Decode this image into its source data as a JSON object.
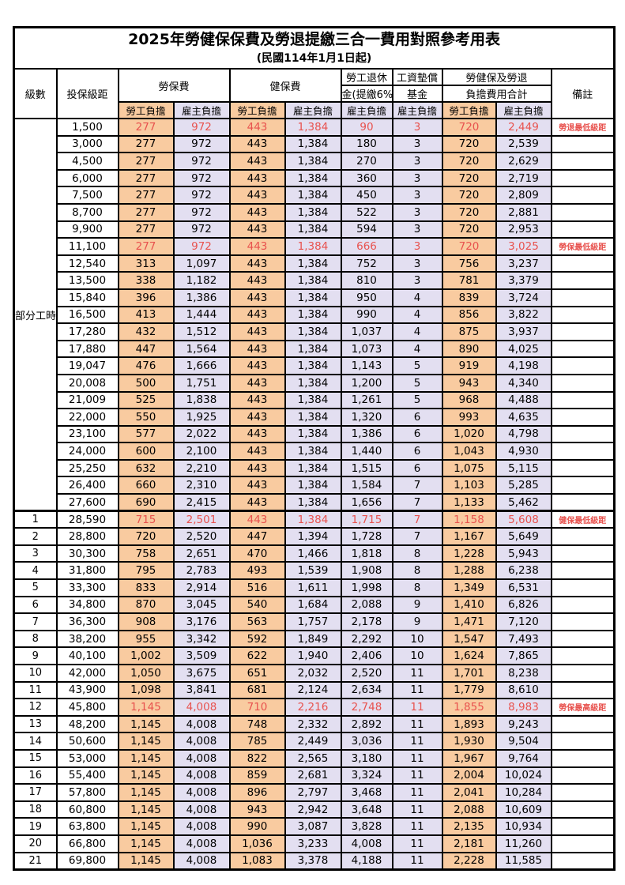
{
  "title": "2025年勞健保保費及勞退提繳三合一費用對照參考用表",
  "subtitle": "(民國114年1月1日起)",
  "header": {
    "level": "級數",
    "bracket": "投保級距",
    "labor_insurance": "勞保費",
    "health_insurance": "健保費",
    "pension_line1": "勞工退休",
    "pension_line2": "金(提繳6%)",
    "wage_fund_line1": "工資墊償",
    "wage_fund_line2": "基金",
    "total_line1": "勞健保及勞退",
    "total_line2": "負擔費用合計",
    "employee_share": "勞工負擔",
    "employer_share": "雇主負擔",
    "remark": "備註"
  },
  "part_time_label": "部分工時",
  "part_time_rows": 23,
  "colors": {
    "employee_bg": "#F9CBA0",
    "employer_bg": "#E3DFF1",
    "highlight_text": "#E8524E",
    "border": "#000000"
  },
  "column_pattern": [
    "emp",
    "er",
    "emp",
    "er",
    "er",
    "er",
    "emp",
    "er"
  ],
  "rows": [
    {
      "level": "",
      "bracket": "1,500",
      "values": [
        "277",
        "972",
        "443",
        "1,384",
        "90",
        "3",
        "720",
        "2,449"
      ],
      "note": "勞退最低級距",
      "highlight": true
    },
    {
      "level": "",
      "bracket": "3,000",
      "values": [
        "277",
        "972",
        "443",
        "1,384",
        "180",
        "3",
        "720",
        "2,539"
      ],
      "note": "",
      "highlight": false
    },
    {
      "level": "",
      "bracket": "4,500",
      "values": [
        "277",
        "972",
        "443",
        "1,384",
        "270",
        "3",
        "720",
        "2,629"
      ],
      "note": "",
      "highlight": false
    },
    {
      "level": "",
      "bracket": "6,000",
      "values": [
        "277",
        "972",
        "443",
        "1,384",
        "360",
        "3",
        "720",
        "2,719"
      ],
      "note": "",
      "highlight": false
    },
    {
      "level": "",
      "bracket": "7,500",
      "values": [
        "277",
        "972",
        "443",
        "1,384",
        "450",
        "3",
        "720",
        "2,809"
      ],
      "note": "",
      "highlight": false
    },
    {
      "level": "",
      "bracket": "8,700",
      "values": [
        "277",
        "972",
        "443",
        "1,384",
        "522",
        "3",
        "720",
        "2,881"
      ],
      "note": "",
      "highlight": false
    },
    {
      "level": "",
      "bracket": "9,900",
      "values": [
        "277",
        "972",
        "443",
        "1,384",
        "594",
        "3",
        "720",
        "2,953"
      ],
      "note": "",
      "highlight": false
    },
    {
      "level": "",
      "bracket": "11,100",
      "values": [
        "277",
        "972",
        "443",
        "1,384",
        "666",
        "3",
        "720",
        "3,025"
      ],
      "note": "勞保最低級距",
      "highlight": true
    },
    {
      "level": "",
      "bracket": "12,540",
      "values": [
        "313",
        "1,097",
        "443",
        "1,384",
        "752",
        "3",
        "756",
        "3,237"
      ],
      "note": "",
      "highlight": false
    },
    {
      "level": "",
      "bracket": "13,500",
      "values": [
        "338",
        "1,182",
        "443",
        "1,384",
        "810",
        "3",
        "781",
        "3,379"
      ],
      "note": "",
      "highlight": false
    },
    {
      "level": "",
      "bracket": "15,840",
      "values": [
        "396",
        "1,386",
        "443",
        "1,384",
        "950",
        "4",
        "839",
        "3,724"
      ],
      "note": "",
      "highlight": false
    },
    {
      "level": "",
      "bracket": "16,500",
      "values": [
        "413",
        "1,444",
        "443",
        "1,384",
        "990",
        "4",
        "856",
        "3,822"
      ],
      "note": "",
      "highlight": false
    },
    {
      "level": "",
      "bracket": "17,280",
      "values": [
        "432",
        "1,512",
        "443",
        "1,384",
        "1,037",
        "4",
        "875",
        "3,937"
      ],
      "note": "",
      "highlight": false
    },
    {
      "level": "",
      "bracket": "17,880",
      "values": [
        "447",
        "1,564",
        "443",
        "1,384",
        "1,073",
        "4",
        "890",
        "4,025"
      ],
      "note": "",
      "highlight": false
    },
    {
      "level": "",
      "bracket": "19,047",
      "values": [
        "476",
        "1,666",
        "443",
        "1,384",
        "1,143",
        "5",
        "919",
        "4,198"
      ],
      "note": "",
      "highlight": false
    },
    {
      "level": "",
      "bracket": "20,008",
      "values": [
        "500",
        "1,751",
        "443",
        "1,384",
        "1,200",
        "5",
        "943",
        "4,340"
      ],
      "note": "",
      "highlight": false
    },
    {
      "level": "",
      "bracket": "21,009",
      "values": [
        "525",
        "1,838",
        "443",
        "1,384",
        "1,261",
        "5",
        "968",
        "4,488"
      ],
      "note": "",
      "highlight": false
    },
    {
      "level": "",
      "bracket": "22,000",
      "values": [
        "550",
        "1,925",
        "443",
        "1,384",
        "1,320",
        "6",
        "993",
        "4,635"
      ],
      "note": "",
      "highlight": false
    },
    {
      "level": "",
      "bracket": "23,100",
      "values": [
        "577",
        "2,022",
        "443",
        "1,384",
        "1,386",
        "6",
        "1,020",
        "4,798"
      ],
      "note": "",
      "highlight": false
    },
    {
      "level": "",
      "bracket": "24,000",
      "values": [
        "600",
        "2,100",
        "443",
        "1,384",
        "1,440",
        "6",
        "1,043",
        "4,930"
      ],
      "note": "",
      "highlight": false
    },
    {
      "level": "",
      "bracket": "25,250",
      "values": [
        "632",
        "2,210",
        "443",
        "1,384",
        "1,515",
        "6",
        "1,075",
        "5,115"
      ],
      "note": "",
      "highlight": false
    },
    {
      "level": "",
      "bracket": "26,400",
      "values": [
        "660",
        "2,310",
        "443",
        "1,384",
        "1,584",
        "7",
        "1,103",
        "5,285"
      ],
      "note": "",
      "highlight": false
    },
    {
      "level": "",
      "bracket": "27,600",
      "values": [
        "690",
        "2,415",
        "443",
        "1,384",
        "1,656",
        "7",
        "1,133",
        "5,462"
      ],
      "note": "",
      "highlight": false
    },
    {
      "level": "1",
      "bracket": "28,590",
      "values": [
        "715",
        "2,501",
        "443",
        "1,384",
        "1,715",
        "7",
        "1,158",
        "5,608"
      ],
      "note": "健保最低級距",
      "highlight": true,
      "section_start": true
    },
    {
      "level": "2",
      "bracket": "28,800",
      "values": [
        "720",
        "2,520",
        "447",
        "1,394",
        "1,728",
        "7",
        "1,167",
        "5,649"
      ],
      "note": "",
      "highlight": false
    },
    {
      "level": "3",
      "bracket": "30,300",
      "values": [
        "758",
        "2,651",
        "470",
        "1,466",
        "1,818",
        "8",
        "1,228",
        "5,943"
      ],
      "note": "",
      "highlight": false
    },
    {
      "level": "4",
      "bracket": "31,800",
      "values": [
        "795",
        "2,783",
        "493",
        "1,539",
        "1,908",
        "8",
        "1,288",
        "6,238"
      ],
      "note": "",
      "highlight": false
    },
    {
      "level": "5",
      "bracket": "33,300",
      "values": [
        "833",
        "2,914",
        "516",
        "1,611",
        "1,998",
        "8",
        "1,349",
        "6,531"
      ],
      "note": "",
      "highlight": false
    },
    {
      "level": "6",
      "bracket": "34,800",
      "values": [
        "870",
        "3,045",
        "540",
        "1,684",
        "2,088",
        "9",
        "1,410",
        "6,826"
      ],
      "note": "",
      "highlight": false
    },
    {
      "level": "7",
      "bracket": "36,300",
      "values": [
        "908",
        "3,176",
        "563",
        "1,757",
        "2,178",
        "9",
        "1,471",
        "7,120"
      ],
      "note": "",
      "highlight": false
    },
    {
      "level": "8",
      "bracket": "38,200",
      "values": [
        "955",
        "3,342",
        "592",
        "1,849",
        "2,292",
        "10",
        "1,547",
        "7,493"
      ],
      "note": "",
      "highlight": false
    },
    {
      "level": "9",
      "bracket": "40,100",
      "values": [
        "1,002",
        "3,509",
        "622",
        "1,940",
        "2,406",
        "10",
        "1,624",
        "7,865"
      ],
      "note": "",
      "highlight": false
    },
    {
      "level": "10",
      "bracket": "42,000",
      "values": [
        "1,050",
        "3,675",
        "651",
        "2,032",
        "2,520",
        "11",
        "1,701",
        "8,238"
      ],
      "note": "",
      "highlight": false
    },
    {
      "level": "11",
      "bracket": "43,900",
      "values": [
        "1,098",
        "3,841",
        "681",
        "2,124",
        "2,634",
        "11",
        "1,779",
        "8,610"
      ],
      "note": "",
      "highlight": false
    },
    {
      "level": "12",
      "bracket": "45,800",
      "values": [
        "1,145",
        "4,008",
        "710",
        "2,216",
        "2,748",
        "11",
        "1,855",
        "8,983"
      ],
      "note": "勞保最高級距",
      "highlight": true
    },
    {
      "level": "13",
      "bracket": "48,200",
      "values": [
        "1,145",
        "4,008",
        "748",
        "2,332",
        "2,892",
        "11",
        "1,893",
        "9,243"
      ],
      "note": "",
      "highlight": false
    },
    {
      "level": "14",
      "bracket": "50,600",
      "values": [
        "1,145",
        "4,008",
        "785",
        "2,449",
        "3,036",
        "11",
        "1,930",
        "9,504"
      ],
      "note": "",
      "highlight": false
    },
    {
      "level": "15",
      "bracket": "53,000",
      "values": [
        "1,145",
        "4,008",
        "822",
        "2,565",
        "3,180",
        "11",
        "1,967",
        "9,764"
      ],
      "note": "",
      "highlight": false
    },
    {
      "level": "16",
      "bracket": "55,400",
      "values": [
        "1,145",
        "4,008",
        "859",
        "2,681",
        "3,324",
        "11",
        "2,004",
        "10,024"
      ],
      "note": "",
      "highlight": false
    },
    {
      "level": "17",
      "bracket": "57,800",
      "values": [
        "1,145",
        "4,008",
        "896",
        "2,797",
        "3,468",
        "11",
        "2,041",
        "10,284"
      ],
      "note": "",
      "highlight": false
    },
    {
      "level": "18",
      "bracket": "60,800",
      "values": [
        "1,145",
        "4,008",
        "943",
        "2,942",
        "3,648",
        "11",
        "2,088",
        "10,609"
      ],
      "note": "",
      "highlight": false
    },
    {
      "level": "19",
      "bracket": "63,800",
      "values": [
        "1,145",
        "4,008",
        "990",
        "3,087",
        "3,828",
        "11",
        "2,135",
        "10,934"
      ],
      "note": "",
      "highlight": false
    },
    {
      "level": "20",
      "bracket": "66,800",
      "values": [
        "1,145",
        "4,008",
        "1,036",
        "3,233",
        "4,008",
        "11",
        "2,181",
        "11,260"
      ],
      "note": "",
      "highlight": false
    },
    {
      "level": "21",
      "bracket": "69,800",
      "values": [
        "1,145",
        "4,008",
        "1,083",
        "3,378",
        "4,188",
        "11",
        "2,228",
        "11,585"
      ],
      "note": "",
      "highlight": false
    }
  ]
}
